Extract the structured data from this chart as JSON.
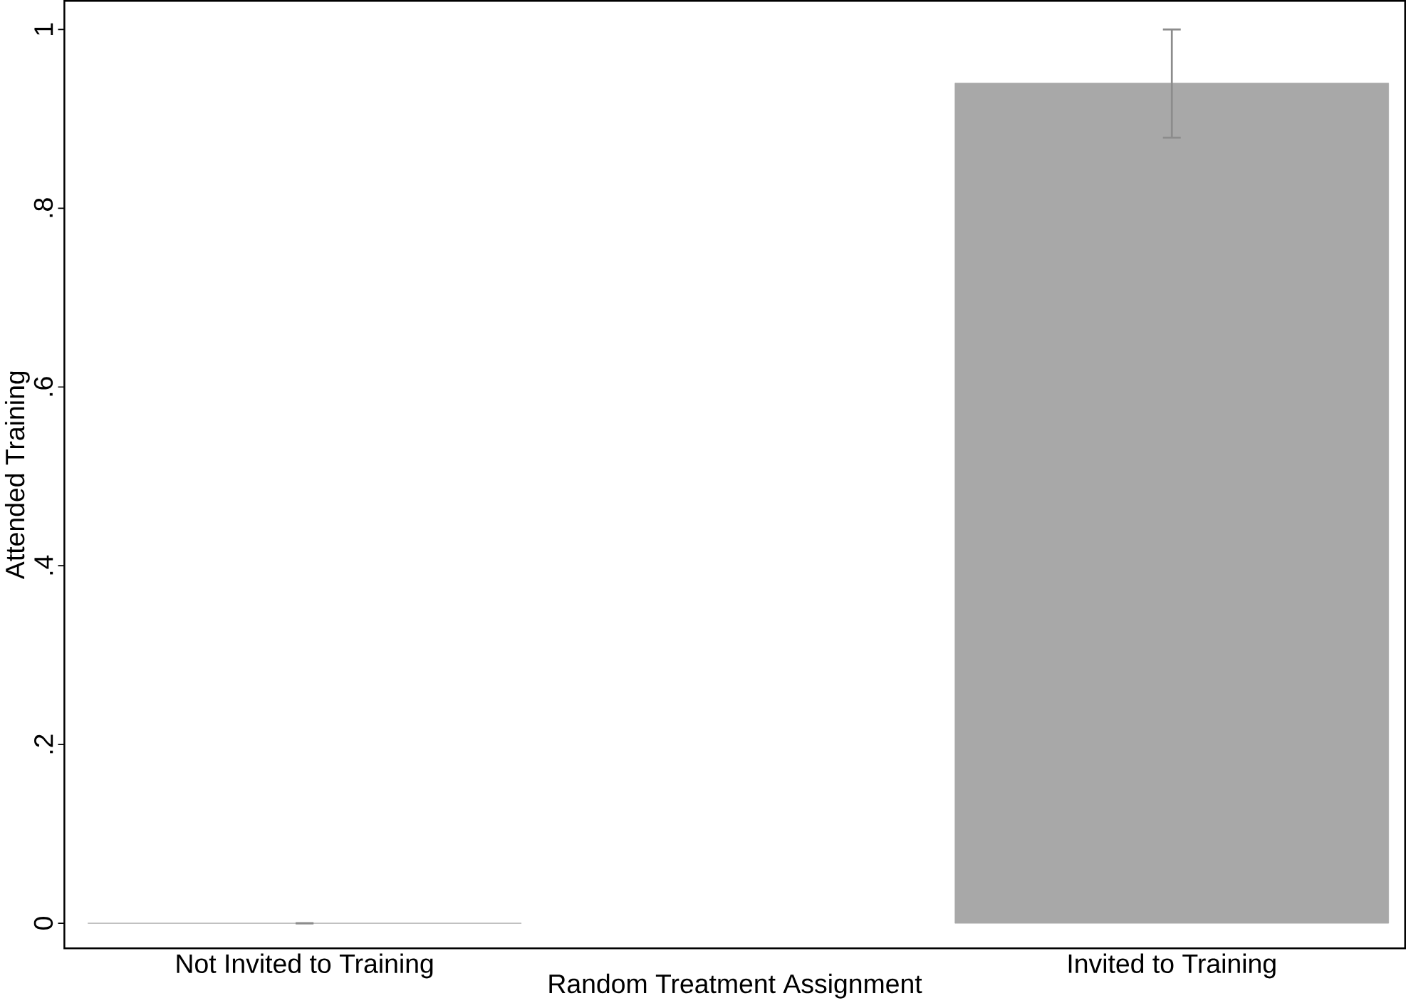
{
  "chart_data": {
    "type": "bar",
    "xlabel": "Random Treatment Assignment",
    "ylabel": "Attended Training",
    "categories": [
      "Not Invited to Training",
      "Invited to Training"
    ],
    "values": [
      0,
      0.94
    ],
    "color": "#a8a8a8",
    "errors": [
      [
        0,
        0
      ],
      [
        0.879,
        1.0
      ]
    ],
    "ylim": [
      -0.028,
      1.032
    ],
    "yticks": [
      {
        "value": 0,
        "label": "0"
      },
      {
        "value": 0.2,
        "label": ".2"
      },
      {
        "value": 0.4,
        "label": ".4"
      },
      {
        "value": 0.6,
        "label": ".6"
      },
      {
        "value": 0.8,
        "label": ".8"
      },
      {
        "value": 1,
        "label": "1"
      }
    ],
    "grid": false
  }
}
